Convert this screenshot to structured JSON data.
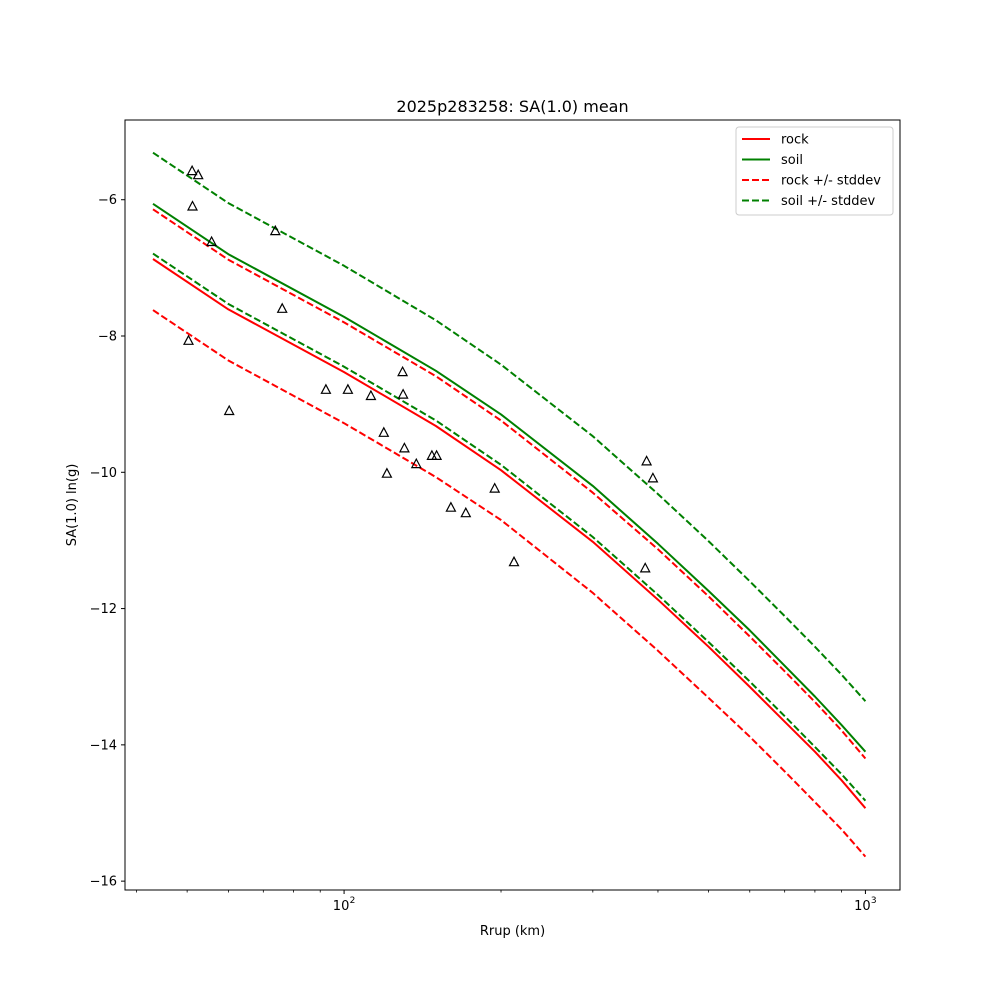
{
  "chart_data": {
    "type": "line",
    "title": "2025p283258: SA(1.0) mean",
    "xlabel": "Rrup (km)",
    "ylabel": "SA(1.0) ln(g)",
    "xscale": "log",
    "xlim": [
      38,
      1165
    ],
    "ylim": [
      -16.13,
      -4.83
    ],
    "x_ticks": [
      {
        "value": 100,
        "label": "10"
      },
      {
        "value": 1000,
        "label": "10"
      }
    ],
    "x_tick_exponents": [
      "2",
      "3"
    ],
    "y_ticks": [
      -16,
      -14,
      -12,
      -10,
      -8,
      -6
    ],
    "y_tick_labels": [
      "−16",
      "−14",
      "−12",
      "−10",
      "−8",
      "−6"
    ],
    "grid": false,
    "legend_position": "top-right",
    "series": [
      {
        "name": "rock",
        "color": "#ff0000",
        "style": "solid",
        "x": [
          43,
          60,
          100,
          150,
          200,
          300,
          400,
          500,
          600,
          700,
          800,
          900,
          1000
        ],
        "y": [
          -6.87,
          -7.61,
          -8.53,
          -9.32,
          -9.97,
          -11.02,
          -11.87,
          -12.56,
          -13.15,
          -13.66,
          -14.1,
          -14.52,
          -14.93
        ]
      },
      {
        "name": "soil",
        "color": "#008000",
        "style": "solid",
        "x": [
          43,
          60,
          100,
          150,
          200,
          300,
          400,
          500,
          600,
          700,
          800,
          900,
          1000
        ],
        "y": [
          -6.06,
          -6.8,
          -7.72,
          -8.51,
          -9.15,
          -10.2,
          -11.05,
          -11.74,
          -12.32,
          -12.84,
          -13.29,
          -13.71,
          -14.1
        ]
      },
      {
        "name": "rock +/- stddev",
        "color": "#ff0000",
        "style": "dashed",
        "x": [
          43,
          60,
          100,
          150,
          200,
          300,
          400,
          500,
          600,
          700,
          800,
          900,
          1000
        ],
        "y": [
          -7.62,
          -8.36,
          -9.28,
          -10.07,
          -10.7,
          -11.77,
          -12.62,
          -13.31,
          -13.88,
          -14.39,
          -14.84,
          -15.24,
          -15.64
        ]
      },
      {
        "name": "",
        "color": "#ff0000",
        "style": "dashed",
        "x": [
          43,
          60,
          100,
          150,
          200,
          300,
          400,
          500,
          600,
          700,
          800,
          900,
          1000
        ],
        "y": [
          -6.14,
          -6.88,
          -7.8,
          -8.59,
          -9.24,
          -10.3,
          -11.13,
          -11.82,
          -12.41,
          -12.92,
          -13.37,
          -13.79,
          -14.2
        ]
      },
      {
        "name": "soil +/- stddev",
        "color": "#008000",
        "style": "dashed",
        "x": [
          43,
          60,
          100,
          150,
          200,
          300,
          400,
          500,
          600,
          700,
          800,
          900,
          1000
        ],
        "y": [
          -5.31,
          -6.05,
          -6.97,
          -7.77,
          -8.42,
          -9.47,
          -10.32,
          -11.01,
          -11.6,
          -12.11,
          -12.56,
          -12.97,
          -13.36
        ]
      },
      {
        "name": "",
        "color": "#008000",
        "style": "dashed",
        "x": [
          43,
          60,
          100,
          150,
          200,
          300,
          400,
          500,
          600,
          700,
          800,
          900,
          1000
        ],
        "y": [
          -6.79,
          -7.53,
          -8.45,
          -9.24,
          -9.89,
          -10.95,
          -11.8,
          -12.49,
          -13.07,
          -13.58,
          -14.03,
          -14.43,
          -14.82
        ]
      }
    ],
    "observations": {
      "marker": "triangle",
      "points": [
        {
          "x": 51.1,
          "y": -5.58
        },
        {
          "x": 52.5,
          "y": -5.64
        },
        {
          "x": 51.2,
          "y": -6.1
        },
        {
          "x": 55.7,
          "y": -6.62
        },
        {
          "x": 50.3,
          "y": -8.07
        },
        {
          "x": 60.2,
          "y": -9.1
        },
        {
          "x": 73.8,
          "y": -6.46
        },
        {
          "x": 76.1,
          "y": -7.6
        },
        {
          "x": 92.3,
          "y": -8.79
        },
        {
          "x": 101.7,
          "y": -8.79
        },
        {
          "x": 112.6,
          "y": -8.88
        },
        {
          "x": 119.2,
          "y": -9.42
        },
        {
          "x": 120.8,
          "y": -10.02
        },
        {
          "x": 129.5,
          "y": -8.53
        },
        {
          "x": 129.8,
          "y": -8.86
        },
        {
          "x": 130.5,
          "y": -9.65
        },
        {
          "x": 137.6,
          "y": -9.88
        },
        {
          "x": 147.4,
          "y": -9.76
        },
        {
          "x": 150.5,
          "y": -9.76
        },
        {
          "x": 160.3,
          "y": -10.52
        },
        {
          "x": 171.2,
          "y": -10.6
        },
        {
          "x": 194.5,
          "y": -10.24
        },
        {
          "x": 211.8,
          "y": -11.32
        },
        {
          "x": 378.1,
          "y": -11.41
        },
        {
          "x": 380.5,
          "y": -9.84
        },
        {
          "x": 391.2,
          "y": -10.09
        }
      ]
    }
  }
}
